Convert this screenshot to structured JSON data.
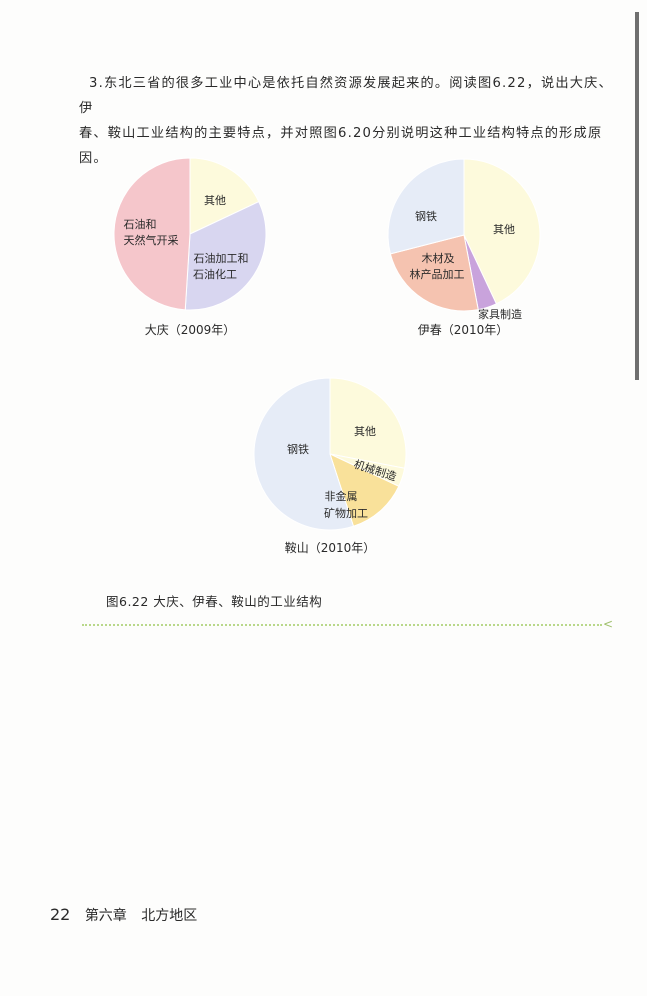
{
  "question": {
    "number": "3.",
    "line1": "东北三省的很多工业中心是依托自然资源发展起来的。阅读图6.22，说出大庆、伊",
    "line2": "春、鞍山工业结构的主要特点，并对照图6.20分别说明这种工业结构特点的形成原因。"
  },
  "figure_caption": "图6.22  大庆、伊春、鞍山的工业结构",
  "footer": {
    "page_number": "22",
    "chapter": "第六章",
    "section": "北方地区"
  },
  "colors": {
    "pink": "#f5c6cb",
    "lavender": "#d8d6f0",
    "cream": "#fdfadc",
    "blue": "#e6ecf7",
    "salmon": "#f5c3b0",
    "purple": "#c9a3dc",
    "yellow": "#f9e19a",
    "green_dots": "#b9d88a"
  },
  "chart_data": [
    {
      "type": "pie",
      "title": "大庆（2009年）",
      "slices": [
        {
          "label": "其他",
          "value": 18,
          "color": "#fdfadc"
        },
        {
          "label": "石油加工和石油化工",
          "value": 33,
          "color": "#d8d6f0"
        },
        {
          "label": "石油和天然气开采",
          "value": 49,
          "color": "#f5c6cb"
        }
      ]
    },
    {
      "type": "pie",
      "title": "伊春（2010年）",
      "slices": [
        {
          "label": "其他",
          "value": 43,
          "color": "#fdfadc"
        },
        {
          "label": "家具制造",
          "value": 4,
          "color": "#c9a3dc"
        },
        {
          "label": "木材及林产品加工",
          "value": 24,
          "color": "#f5c3b0"
        },
        {
          "label": "钢铁",
          "value": 29,
          "color": "#e6ecf7"
        }
      ]
    },
    {
      "type": "pie",
      "title": "鞍山（2010年）",
      "slices": [
        {
          "label": "其他",
          "value": 28,
          "color": "#fdfadc"
        },
        {
          "label": "机械制造",
          "value": 4,
          "color": "#fdfadc"
        },
        {
          "label": "非金属矿物加工",
          "value": 13,
          "color": "#f9e19a"
        },
        {
          "label": "钢铁",
          "value": 55,
          "color": "#e6ecf7"
        }
      ]
    }
  ]
}
